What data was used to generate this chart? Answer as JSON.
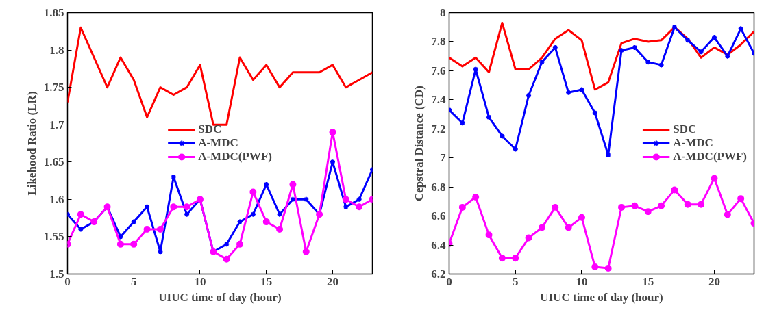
{
  "chart_data": [
    {
      "type": "line",
      "xlabel": "UIUC time of day (hour)",
      "ylabel": "Likehood Ratio (LR)",
      "x": [
        0,
        1,
        2,
        3,
        4,
        5,
        6,
        7,
        8,
        9,
        10,
        11,
        12,
        13,
        14,
        15,
        16,
        17,
        18,
        19,
        20,
        21,
        22,
        23
      ],
      "xlim": [
        0,
        23
      ],
      "xticks": [
        0,
        5,
        10,
        15,
        20
      ],
      "ylim": [
        1.5,
        1.85
      ],
      "yticks": [
        1.5,
        1.55,
        1.6,
        1.65,
        1.7,
        1.75,
        1.8,
        1.85
      ],
      "grid": false,
      "legend": "center",
      "series": [
        {
          "name": "SDC",
          "color": "#ff0000",
          "marker": "none",
          "values": [
            1.73,
            1.83,
            1.79,
            1.75,
            1.79,
            1.76,
            1.71,
            1.75,
            1.74,
            1.75,
            1.78,
            1.7,
            1.7,
            1.79,
            1.76,
            1.78,
            1.75,
            1.77,
            1.77,
            1.77,
            1.78,
            1.75,
            1.76,
            1.77
          ]
        },
        {
          "name": "A-MDC",
          "color": "#0000ff",
          "marker": "cross",
          "values": [
            1.58,
            1.56,
            1.57,
            1.59,
            1.55,
            1.57,
            1.59,
            1.53,
            1.63,
            1.58,
            1.6,
            1.53,
            1.54,
            1.57,
            1.58,
            1.62,
            1.58,
            1.6,
            1.6,
            1.58,
            1.65,
            1.59,
            1.6,
            1.64
          ]
        },
        {
          "name": "A-MDC(PWF)",
          "color": "#ff00ff",
          "marker": "circle",
          "values": [
            1.54,
            1.58,
            1.57,
            1.59,
            1.54,
            1.54,
            1.56,
            1.56,
            1.59,
            1.59,
            1.6,
            1.53,
            1.52,
            1.54,
            1.61,
            1.57,
            1.56,
            1.62,
            1.53,
            1.58,
            1.69,
            1.6,
            1.59,
            1.6
          ]
        }
      ]
    },
    {
      "type": "line",
      "xlabel": "UIUC time of day (hour)",
      "ylabel": "Cepstral Distance (CD)",
      "x": [
        0,
        1,
        2,
        3,
        4,
        5,
        6,
        7,
        8,
        9,
        10,
        11,
        12,
        13,
        14,
        15,
        16,
        17,
        18,
        19,
        20,
        21,
        22,
        23
      ],
      "xlim": [
        0,
        23
      ],
      "xticks": [
        0,
        5,
        10,
        15,
        20
      ],
      "ylim": [
        6.2,
        8
      ],
      "yticks": [
        6.2,
        6.4,
        6.6,
        6.8,
        7,
        7.2,
        7.4,
        7.6,
        7.8,
        8
      ],
      "grid": false,
      "legend": "center right",
      "series": [
        {
          "name": "SDC",
          "color": "#ff0000",
          "marker": "none",
          "values": [
            7.69,
            7.63,
            7.69,
            7.59,
            7.93,
            7.61,
            7.61,
            7.69,
            7.82,
            7.88,
            7.81,
            7.47,
            7.52,
            7.79,
            7.82,
            7.8,
            7.81,
            7.9,
            7.82,
            7.69,
            7.76,
            7.71,
            7.78,
            7.87
          ]
        },
        {
          "name": "A-MDC",
          "color": "#0000ff",
          "marker": "cross",
          "values": [
            7.33,
            7.24,
            7.61,
            7.28,
            7.15,
            7.06,
            7.43,
            7.66,
            7.76,
            7.45,
            7.47,
            7.31,
            7.02,
            7.74,
            7.76,
            7.66,
            7.64,
            7.9,
            7.81,
            7.73,
            7.83,
            7.7,
            7.89,
            7.72
          ]
        },
        {
          "name": "A-MDC(PWF)",
          "color": "#ff00ff",
          "marker": "circle",
          "values": [
            6.41,
            6.66,
            6.73,
            6.47,
            6.31,
            6.31,
            6.45,
            6.52,
            6.66,
            6.52,
            6.59,
            6.25,
            6.24,
            6.66,
            6.67,
            6.63,
            6.67,
            6.78,
            6.68,
            6.68,
            6.86,
            6.61,
            6.72,
            6.55
          ]
        }
      ]
    }
  ]
}
